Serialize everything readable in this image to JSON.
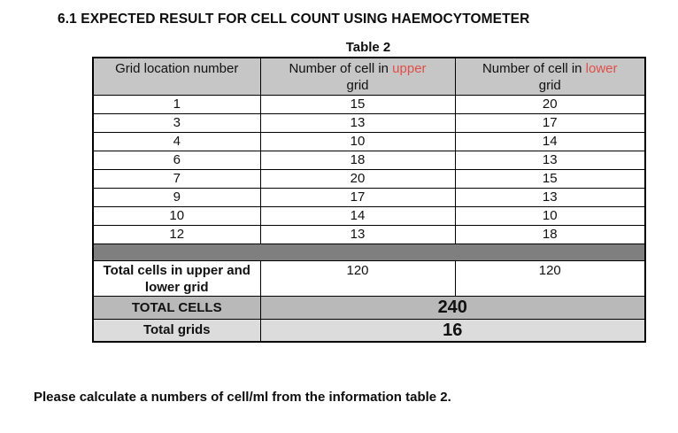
{
  "page": {
    "title": "6.1 EXPECTED RESULT FOR CELL COUNT USING HAEMOCYTOMETER",
    "instruction": "Please calculate a numbers of cell/ml from the information table 2."
  },
  "colors": {
    "header_bg": "#c6c6c6",
    "separator_bg": "#7f7f7f",
    "total_cells_bg": "#b9b9b9",
    "total_grids_bg": "#dcdcdc",
    "highlight_red": "#e04f4a",
    "border": "#000000"
  },
  "table": {
    "caption": "Table 2",
    "headers": {
      "grid_location": "Grid location number",
      "upper_prefix": "Number of cell in",
      "upper_highlight": "upper",
      "upper_suffix": "grid",
      "lower_prefix": "Number of cell in",
      "lower_highlight": "lower",
      "lower_suffix": "grid"
    },
    "rows": [
      {
        "grid_location": "1",
        "upper": "15",
        "lower": "20"
      },
      {
        "grid_location": "3",
        "upper": "13",
        "lower": "17"
      },
      {
        "grid_location": "4",
        "upper": "10",
        "lower": "14"
      },
      {
        "grid_location": "6",
        "upper": "18",
        "lower": "13"
      },
      {
        "grid_location": "7",
        "upper": "20",
        "lower": "15"
      },
      {
        "grid_location": "9",
        "upper": "17",
        "lower": "13"
      },
      {
        "grid_location": "10",
        "upper": "14",
        "lower": "10"
      },
      {
        "grid_location": "12",
        "upper": "13",
        "lower": "18"
      }
    ],
    "totals": {
      "upper_lower_label": "Total cells in upper and lower grid",
      "upper_total": "120",
      "lower_total": "120",
      "total_cells_label": "TOTAL CELLS",
      "total_cells_value": "240",
      "total_grids_label": "Total grids",
      "total_grids_value": "16"
    }
  }
}
